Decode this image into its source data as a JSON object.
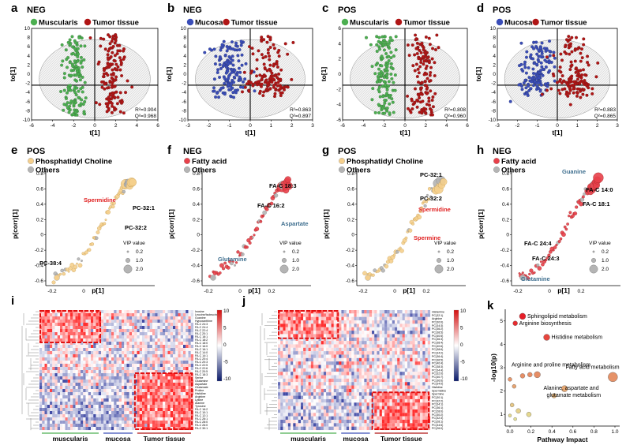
{
  "colors": {
    "muscularis": "#4caf50",
    "mucosa": "#3a4db8",
    "tumor": "#b01515",
    "pc": "#f5cf8c",
    "fatty": "#e8404a",
    "others": "#b4b4b4",
    "red_label": "#e02020",
    "blue_label": "#3f6f8f"
  },
  "pca": [
    {
      "id": "a",
      "label": "a",
      "mode": "NEG",
      "legend": [
        "Muscularis",
        "Tumor tissue"
      ],
      "groups": [
        "muscularis",
        "tumor"
      ],
      "r2": "R²=0.904",
      "q2": "Q²=0.968",
      "xticks": [
        "-6",
        "-4",
        "-2",
        "0",
        "2",
        "4",
        "6"
      ],
      "yticks": [
        "10",
        "8",
        "6",
        "4",
        "2",
        "0",
        "-2",
        "-4",
        "-6",
        "-8",
        "-10"
      ],
      "xlabel": "t[1]",
      "ylabel": "to[1]"
    },
    {
      "id": "b",
      "label": "b",
      "mode": "NEG",
      "legend": [
        "Mucosa",
        "Tumor tissue"
      ],
      "groups": [
        "mucosa",
        "tumor"
      ],
      "r2": "R²=0.863",
      "q2": "Q²=0.897",
      "xticks": [
        "-3",
        "-2",
        "-1",
        "0",
        "1",
        "2",
        "3"
      ],
      "yticks": [
        "10",
        "8",
        "6",
        "4",
        "2",
        "0",
        "-2",
        "-4",
        "-6",
        "-8",
        "-10"
      ],
      "xlabel": "t[1]",
      "ylabel": "to[1]"
    },
    {
      "id": "c",
      "label": "c",
      "mode": "POS",
      "legend": [
        "Muscularis",
        "Tumor tissue"
      ],
      "groups": [
        "muscularis",
        "tumor"
      ],
      "r2": "R²=0.808",
      "q2": "Q²=0.960",
      "xticks": [
        "-6",
        "-4",
        "-2",
        "0",
        "2",
        "4",
        "6"
      ],
      "yticks": [
        "6",
        "4",
        "2",
        "0",
        "-2",
        "-4",
        "-6"
      ],
      "xlabel": "t[1]",
      "ylabel": "to[1]"
    },
    {
      "id": "d",
      "label": "d",
      "mode": "POS",
      "legend": [
        "Mucosa",
        "Tumor tissue"
      ],
      "groups": [
        "mucosa",
        "tumor"
      ],
      "r2": "R²=0.883",
      "q2": "Q²=0.865",
      "xticks": [
        "-3",
        "-2",
        "-1",
        "0",
        "1",
        "2",
        "3"
      ],
      "yticks": [
        "10",
        "8",
        "6",
        "4",
        "2",
        "0",
        "-2",
        "-4",
        "-6",
        "-8",
        "-10"
      ],
      "xlabel": "t[1]",
      "ylabel": "to[1]"
    }
  ],
  "splots": [
    {
      "id": "e",
      "label": "e",
      "mode": "POS",
      "legend": [
        "Phosphatidyl Choline",
        "Others"
      ],
      "kind": "pc",
      "xticks": [
        "-0.2",
        "0"
      ],
      "yticks": [
        "0.8",
        "0.6",
        "0.4",
        "0.2",
        "0",
        "-0.2",
        "-0.4",
        "-0.6"
      ],
      "xlabel": "p[1]",
      "ylabel": "p(corr)[1]",
      "vip_title": "VIP value",
      "vip": [
        "0.2",
        "1.0",
        "2.0"
      ],
      "annotations": [
        {
          "text": "Spermidine",
          "color": "red"
        },
        {
          "text": "PC-32:1",
          "color": "black"
        },
        {
          "text": "PC-32:2",
          "color": "black"
        },
        {
          "text": "PC-38:4",
          "color": "black"
        }
      ]
    },
    {
      "id": "f",
      "label": "f",
      "mode": "NEG",
      "legend": [
        "Fatty acid",
        "Others"
      ],
      "kind": "fatty",
      "xticks": [
        "-0.2",
        "0",
        "0.2"
      ],
      "yticks": [
        "0.8",
        "0.6",
        "0.4",
        "0.2",
        "0",
        "-0.2",
        "-0.4",
        "-0.6"
      ],
      "xlabel": "p[1]",
      "ylabel": "p(corr)[1]",
      "vip_title": "VIP value",
      "vip": [
        "0.2",
        "1.0",
        "2.0"
      ],
      "annotations": [
        {
          "text": "FA-C 18:3",
          "color": "black"
        },
        {
          "text": "FA-C 16:2",
          "color": "black"
        },
        {
          "text": "Aspartate",
          "color": "blue"
        },
        {
          "text": "Glutamine",
          "color": "blue"
        }
      ]
    },
    {
      "id": "g",
      "label": "g",
      "mode": "POS",
      "legend": [
        "Phosphatidyl Choline",
        "Others"
      ],
      "kind": "pc",
      "xticks": [
        "-0.2",
        "0",
        "0.2"
      ],
      "yticks": [
        "0.8",
        "0.6",
        "0.4",
        "0.2",
        "0",
        "-0.2",
        "-0.4",
        "-0.6"
      ],
      "xlabel": "p[1]",
      "ylabel": "p(corr)[1]",
      "vip_title": "VIP value",
      "vip": [
        "0.2",
        "1.0",
        "2.0"
      ],
      "annotations": [
        {
          "text": "PC-32:1",
          "color": "black"
        },
        {
          "text": "PC-32:2",
          "color": "black"
        },
        {
          "text": "Spermidine",
          "color": "red"
        },
        {
          "text": "Spermine",
          "color": "red"
        }
      ]
    },
    {
      "id": "h",
      "label": "h",
      "mode": "NEG",
      "legend": [
        "Fatty acid",
        "Others"
      ],
      "kind": "fatty",
      "xticks": [
        "-0.2",
        "0",
        "0.2"
      ],
      "yticks": [
        "0.8",
        "0.6",
        "0.4",
        "0.2",
        "0",
        "-0.2",
        "-0.4",
        "-0.6"
      ],
      "xlabel": "p[1]",
      "ylabel": "p(corr)[1]",
      "vip_title": "VIP value",
      "vip": [
        "0.2",
        "1.0",
        "2.0"
      ],
      "annotations": [
        {
          "text": "Guanine",
          "color": "blue"
        },
        {
          "text": "FA-C 14:0",
          "color": "black"
        },
        {
          "text": "FA-C 18:1",
          "color": "black"
        },
        {
          "text": "FA-C 24:4",
          "color": "black"
        },
        {
          "text": "FA-C 24:3",
          "color": "black"
        },
        {
          "text": "Glutamine",
          "color": "blue"
        }
      ]
    }
  ],
  "heatmaps": [
    {
      "id": "i",
      "label": "i",
      "groups": [
        "muscularis",
        "mucosa",
        "Tumor tissue"
      ],
      "scale": [
        "10",
        "5",
        "0",
        "-5",
        "-10"
      ],
      "rows": [
        "Inosine",
        "Leucine/Isoleucine",
        "Guanine",
        "Hypoxanthine",
        "FA-C 24:3",
        "FA-C 24:4",
        "FA-C 22:4",
        "FA-C 20:1",
        "FA-C 18:1",
        "FA-C 18:2",
        "FA-C 18:0",
        "FA-C 16:0",
        "FA-C 16:1",
        "FA-C 14:0",
        "FA-C 14:1",
        "FA-C 20:4",
        "FA-C 20:3",
        "FA-C 22:5",
        "FA-C 22:6",
        "FA-C 20:5",
        "FA-C 18:3",
        "Serine",
        "Glutamine",
        "Aspartate",
        "Glutamate",
        "Proline",
        "Histidine",
        "Arginine",
        "Lysine",
        "Alanine",
        "Tyrosine",
        "FA-C 16:2",
        "FA-C 10:1",
        "FA-C 12:1",
        "FA-C 26:1",
        "FA-C 28:0",
        "FA-C 26:0",
        "FA-C 30:1"
      ]
    },
    {
      "id": "j",
      "label": "j",
      "groups": [
        "muscularis",
        "mucosa",
        "Tumor tissue"
      ],
      "scale": [
        "10",
        "5",
        "0",
        "-5",
        "-10"
      ],
      "rows": [
        "Histamine",
        "PC(32:1)",
        "Arginine",
        "PC(30:0)",
        "PC(34:3)",
        "PC(36:2)",
        "PC(38:5)",
        "PC(40:5)",
        "PC(36:3)",
        "PC(38:4)",
        "PC(40:6)",
        "PC(38:6)",
        "PC(34:2)",
        "PC(36:4)",
        "PC(36:5)",
        "PC(40:4)",
        "PC(38:3)",
        "PC(34:4)",
        "PC(32:0)",
        "PC(40:7)",
        "PC(36:6)",
        "PC(34:0)",
        "Histidine",
        "Spermidine",
        "Spermine",
        "PC(30:1)",
        "PC(32:2)",
        "PC(34:1)",
        "PC(36:1)",
        "PC(28:0)",
        "PC(30:2)",
        "PC(32:3)",
        "PC(28:1)",
        "PC(34:5)",
        "PC(26:0)"
      ]
    }
  ],
  "pathway": {
    "label": "k",
    "xlabel": "Pathway Impact",
    "ylabel": "-log10(p)",
    "xticks": [
      "0.0",
      "0.2",
      "0.4",
      "0.6",
      "0.8",
      "1.0"
    ],
    "yticks": [
      "1",
      "2",
      "3",
      "4",
      "5"
    ],
    "points": [
      {
        "name": "Sphingolipid metabolism",
        "impact": 0.12,
        "logp": 5.2,
        "r": 4
      },
      {
        "name": "Arginine biosynthesis",
        "impact": 0.05,
        "logp": 4.9,
        "r": 3
      },
      {
        "name": "Histidine metabolism",
        "impact": 0.35,
        "logp": 4.3,
        "r": 4
      },
      {
        "name": "Fatty acid metabolism",
        "impact": 0.98,
        "logp": 2.6,
        "r": 6
      },
      {
        "name": "Arginine and proline metabolism",
        "impact": 0.26,
        "logp": 2.7,
        "r": 4
      },
      {
        "name": "Alanine, aspartate and glutamate metabolism",
        "impact": 0.52,
        "logp": 2.1,
        "r": 4
      },
      {
        "name": "",
        "impact": 0.0,
        "logp": 2.5,
        "r": 2.5
      },
      {
        "name": "",
        "impact": 0.04,
        "logp": 2.2,
        "r": 2.5
      },
      {
        "name": "",
        "impact": 0.12,
        "logp": 2.65,
        "r": 3
      },
      {
        "name": "",
        "impact": 0.19,
        "logp": 2.7,
        "r": 3
      },
      {
        "name": "",
        "impact": 0.42,
        "logp": 1.8,
        "r": 3
      },
      {
        "name": "",
        "impact": 0.02,
        "logp": 1.4,
        "r": 2.5
      },
      {
        "name": "",
        "impact": 0.08,
        "logp": 1.15,
        "r": 3
      },
      {
        "name": "",
        "impact": 0.18,
        "logp": 1.0,
        "r": 3
      },
      {
        "name": "",
        "impact": 0.0,
        "logp": 0.95,
        "r": 2
      },
      {
        "name": "",
        "impact": 0.05,
        "logp": 0.8,
        "r": 2
      }
    ],
    "labels": [
      "Sphingolipid metabolism",
      "Arginine biosynthesis",
      "Histidine metabolism",
      "Fatty acid metabolism",
      "Arginine and proline metabolism",
      "Alanine, aspartate and",
      "glutamate metabolism"
    ]
  }
}
